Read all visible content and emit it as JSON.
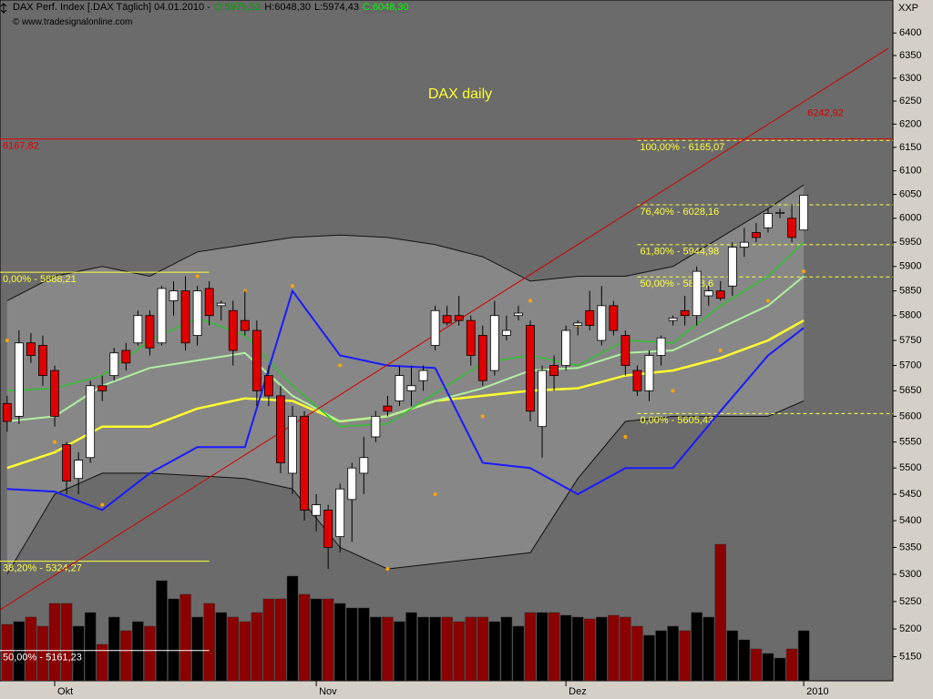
{
  "header": {
    "title": "DAX Perf. Index [.DAX  Täglich] 04.01.2010 -",
    "open": "O:5975,52",
    "high": "H:6048,30",
    "low": "L:5974,43",
    "close": "C:6048,30",
    "source": "© www.tradesignalonline.com",
    "axis_code": "XXP"
  },
  "chart_data": {
    "type": "candlestick",
    "title": "DAX daily",
    "categories": [
      null,
      null,
      null,
      null,
      null,
      null,
      null,
      null,
      null,
      null,
      null,
      null,
      null,
      null,
      null,
      null,
      null,
      null,
      null,
      null,
      null,
      null,
      null,
      null,
      null,
      null,
      null,
      null,
      null,
      null,
      null,
      null,
      null,
      null,
      null,
      null,
      null,
      null,
      null,
      null,
      null,
      null,
      null,
      null,
      null,
      null,
      null,
      null,
      null,
      null,
      null,
      null,
      null,
      null,
      null,
      null,
      null,
      null,
      null,
      null,
      null,
      null,
      null,
      null,
      null,
      null,
      null,
      null
    ],
    "open": [
      5625,
      5600,
      5745,
      5740,
      5690,
      5545,
      5480,
      5520,
      5660,
      5680,
      5730,
      5745,
      5800,
      5745,
      5830,
      5850,
      5760,
      5855,
      5820,
      5810,
      5790,
      5770,
      5680,
      5640,
      5490,
      5600,
      5410,
      5420,
      5370,
      5440,
      5490,
      5560,
      5620,
      5630,
      5650,
      5670,
      5740,
      5800,
      5800,
      5790,
      5760,
      5690,
      5760,
      5800,
      5780,
      5580,
      5700,
      5700,
      5780,
      5810,
      5750,
      5820,
      5760,
      5690,
      5650,
      5720,
      5790,
      5810,
      5800,
      5840,
      5850,
      5860,
      5940,
      5970,
      5980,
      6010,
      6000,
      5975.52
    ],
    "high": [
      5640,
      5770,
      5765,
      5760,
      5700,
      5550,
      5530,
      5670,
      5680,
      5735,
      5745,
      5810,
      5810,
      5860,
      5870,
      5880,
      5860,
      5870,
      5830,
      5830,
      5850,
      5790,
      5700,
      5660,
      5620,
      5610,
      5450,
      5430,
      5470,
      5510,
      5560,
      5610,
      5640,
      5700,
      5700,
      5700,
      5820,
      5820,
      5840,
      5800,
      5780,
      5830,
      5800,
      5820,
      5790,
      5700,
      5720,
      5780,
      5790,
      5850,
      5860,
      5830,
      5770,
      5700,
      5730,
      5760,
      5800,
      5840,
      5900,
      5860,
      5870,
      5950,
      5980,
      5990,
      6020,
      6020,
      6030,
      6048.3
    ],
    "low": [
      5570,
      5585,
      5705,
      5660,
      5580,
      5450,
      5450,
      5510,
      5630,
      5670,
      5690,
      5740,
      5720,
      5740,
      5800,
      5730,
      5740,
      5780,
      5790,
      5700,
      5760,
      5620,
      5620,
      5490,
      5450,
      5400,
      5380,
      5310,
      5340,
      5360,
      5450,
      5550,
      5600,
      5620,
      5620,
      5650,
      5730,
      5780,
      5780,
      5700,
      5660,
      5680,
      5750,
      5790,
      5590,
      5520,
      5650,
      5690,
      5760,
      5770,
      5740,
      5760,
      5680,
      5640,
      5630,
      5700,
      5780,
      5780,
      5780,
      5820,
      5830,
      5840,
      5920,
      5950,
      5970,
      6000,
      5950,
      5974.43
    ],
    "close": [
      5590,
      5745,
      5720,
      5680,
      5600,
      5475,
      5515,
      5660,
      5650,
      5725,
      5705,
      5800,
      5735,
      5855,
      5850,
      5745,
      5850,
      5800,
      5825,
      5730,
      5770,
      5650,
      5640,
      5510,
      5600,
      5420,
      5430,
      5350,
      5460,
      5500,
      5520,
      5600,
      5610,
      5680,
      5660,
      5690,
      5810,
      5785,
      5790,
      5720,
      5670,
      5800,
      5770,
      5805,
      5610,
      5690,
      5680,
      5770,
      5785,
      5780,
      5820,
      5770,
      5700,
      5650,
      5720,
      5755,
      5795,
      5800,
      5890,
      5850,
      5835,
      5940,
      5950,
      5960,
      6010,
      6012,
      5960,
      6048.3
    ],
    "volume": [
      62,
      65,
      70,
      60,
      85,
      85,
      60,
      75,
      40,
      70,
      55,
      65,
      60,
      110,
      90,
      95,
      70,
      85,
      75,
      70,
      65,
      75,
      90,
      90,
      115,
      95,
      90,
      90,
      85,
      80,
      80,
      70,
      70,
      65,
      75,
      70,
      70,
      70,
      65,
      70,
      70,
      65,
      70,
      60,
      75,
      75,
      75,
      72,
      70,
      68,
      70,
      72,
      70,
      60,
      50,
      55,
      60,
      55,
      75,
      70,
      150,
      55,
      45,
      35,
      30,
      25,
      35,
      55
    ],
    "xlim": [
      -0.6,
      74.5
    ],
    "xticks": [
      {
        "value": 4,
        "label": "Okt"
      },
      {
        "value": 26,
        "label": "Nov"
      },
      {
        "value": 47,
        "label": "Dez"
      },
      {
        "value": 67,
        "label": "2010"
      }
    ],
    "ylim": [
      5107,
      6474
    ],
    "log_scale": true,
    "yticks": [
      6400,
      6350,
      6300,
      6250,
      6200,
      6150,
      6100,
      6050,
      6000,
      5950,
      5900,
      5850,
      5800,
      5750,
      5700,
      5650,
      5600,
      5550,
      5500,
      5450,
      5400,
      5350,
      5300,
      5250,
      5200,
      5150
    ],
    "bands": {
      "x": [
        0,
        4,
        8,
        12,
        16,
        20,
        24,
        28,
        32,
        36,
        40,
        44,
        48,
        52,
        56,
        60,
        64,
        67
      ],
      "upper": [
        5830,
        5880,
        5900,
        5880,
        5930,
        5945,
        5960,
        5965,
        5960,
        5945,
        5920,
        5870,
        5880,
        5880,
        5900,
        5960,
        6020,
        6070
      ],
      "lower": [
        5300,
        5450,
        5490,
        5490,
        5485,
        5480,
        5460,
        5350,
        5310,
        5320,
        5330,
        5340,
        5480,
        5590,
        5600,
        5600,
        5600,
        5630
      ]
    },
    "series": [
      {
        "color": "#ffff30",
        "width": 2.5,
        "x": [
          0,
          4,
          8,
          12,
          16,
          20,
          24,
          28,
          32,
          36,
          40,
          44,
          48,
          52,
          56,
          60,
          64,
          67
        ],
        "values": [
          5500,
          5530,
          5580,
          5580,
          5615,
          5635,
          5630,
          5590,
          5600,
          5630,
          5640,
          5650,
          5655,
          5680,
          5690,
          5715,
          5750,
          5790
        ]
      },
      {
        "color": "#b0f0a0",
        "width": 2,
        "x": [
          0,
          4,
          8,
          12,
          16,
          20,
          24,
          28,
          32,
          36,
          40,
          44,
          48,
          52,
          56,
          60,
          64,
          67
        ],
        "values": [
          5590,
          5600,
          5660,
          5695,
          5710,
          5725,
          5640,
          5590,
          5600,
          5630,
          5655,
          5690,
          5695,
          5725,
          5730,
          5775,
          5820,
          5880
        ]
      },
      {
        "color": "#30c030",
        "width": 1.5,
        "x": [
          0,
          4,
          8,
          12,
          16,
          20,
          24,
          28,
          32,
          36,
          40,
          44,
          48,
          52,
          56,
          60,
          64,
          67
        ],
        "values": [
          5650,
          5655,
          5680,
          5750,
          5795,
          5760,
          5660,
          5580,
          5585,
          5645,
          5705,
          5720,
          5700,
          5750,
          5745,
          5820,
          5880,
          5950
        ]
      },
      {
        "color": "#1a1aff",
        "width": 2,
        "x": [
          0,
          4,
          8,
          12,
          16,
          20,
          24,
          28,
          32,
          36,
          40,
          44,
          48,
          52,
          56,
          60,
          64,
          67
        ],
        "values": [
          5460,
          5455,
          5420,
          5490,
          5540,
          5540,
          5850,
          5720,
          5700,
          5695,
          5510,
          5500,
          5450,
          5500,
          5500,
          5610,
          5720,
          5775
        ]
      }
    ],
    "sar": {
      "color": "#ffa500",
      "x": [
        0,
        4,
        8,
        12,
        16,
        20,
        24,
        28,
        32,
        36,
        40,
        44,
        48,
        52,
        56,
        60,
        64,
        67
      ],
      "values": [
        5750,
        5550,
        5430,
        5770,
        5880,
        5850,
        5860,
        5700,
        5310,
        5450,
        5600,
        5830,
        5780,
        5560,
        5650,
        5730,
        5830,
        5890
      ]
    },
    "trendline": {
      "color": "#d00000",
      "x": [
        -0.6,
        67
      ],
      "values": [
        5235,
        6242.92
      ],
      "label": "6242,92"
    },
    "levels": [
      {
        "value": 6167.82,
        "label": "6167,82",
        "color": "#e00000",
        "dash": false,
        "x": [
          -0.6,
          74.5
        ]
      },
      {
        "value": 6165.07,
        "label": "100,00% - 6165,07",
        "color": "#ffff40",
        "dash": true,
        "x": [
          53,
          74.5
        ]
      },
      {
        "value": 6028.16,
        "label": "76,40% - 6028,16",
        "color": "#ffff40",
        "dash": true,
        "x": [
          53,
          74.5
        ]
      },
      {
        "value": 5944.98,
        "label": "61,80% - 5944,98",
        "color": "#ffff40",
        "dash": true,
        "x": [
          53,
          74.5
        ]
      },
      {
        "value": 5878.6,
        "label": "50,00% - 5878,6",
        "color": "#ffff40",
        "dash": true,
        "x": [
          53,
          74.5
        ]
      },
      {
        "value": 5605.43,
        "label": "0,00% - 5605,43",
        "color": "#ffff40",
        "dash": true,
        "x": [
          53,
          74.5
        ]
      },
      {
        "value": 5888.21,
        "label": "0,00% - 5888,21",
        "color": "#ffff40",
        "dash": false,
        "x": [
          -0.6,
          17
        ]
      },
      {
        "value": 5324.27,
        "label": "38,20% - 5324,27",
        "color": "#ffff40",
        "dash": false,
        "x": [
          -0.6,
          17
        ]
      },
      {
        "value": 5161.23,
        "label": "50,00% - 5161,23",
        "color": "#ffffff",
        "dash": false,
        "x": [
          -0.6,
          17
        ]
      }
    ]
  }
}
